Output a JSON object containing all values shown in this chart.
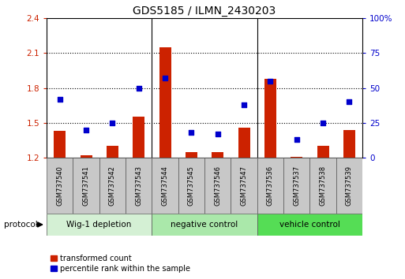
{
  "title": "GDS5185 / ILMN_2430203",
  "categories": [
    "GSM737540",
    "GSM737541",
    "GSM737542",
    "GSM737543",
    "GSM737544",
    "GSM737545",
    "GSM737546",
    "GSM737547",
    "GSM737536",
    "GSM737537",
    "GSM737538",
    "GSM737539"
  ],
  "bar_values": [
    1.43,
    1.22,
    1.3,
    1.55,
    2.15,
    1.25,
    1.25,
    1.46,
    1.88,
    1.21,
    1.3,
    1.44
  ],
  "scatter_values": [
    42,
    20,
    25,
    50,
    57,
    18,
    17,
    38,
    55,
    13,
    25,
    40
  ],
  "bar_color": "#cc2200",
  "scatter_color": "#0000cc",
  "ylim_left": [
    1.2,
    2.4
  ],
  "ylim_right": [
    0,
    100
  ],
  "yticks_left": [
    1.2,
    1.5,
    1.8,
    2.1,
    2.4
  ],
  "yticks_right": [
    0,
    25,
    50,
    75,
    100
  ],
  "ytick_labels_left": [
    "1.2",
    "1.5",
    "1.8",
    "2.1",
    "2.4"
  ],
  "ytick_labels_right": [
    "0",
    "25",
    "50",
    "75",
    "100%"
  ],
  "group_labels": [
    "Wig-1 depletion",
    "negative control",
    "vehicle control"
  ],
  "group_ranges": [
    [
      0,
      3
    ],
    [
      4,
      7
    ],
    [
      8,
      11
    ]
  ],
  "group_colors_light": [
    "#d4f0d4",
    "#aae8aa",
    "#55dd55"
  ],
  "protocol_label": "protocol",
  "legend_bar_label": "transformed count",
  "legend_scatter_label": "percentile rank within the sample",
  "bar_width": 0.45,
  "xlabel_bg": "#c8c8c8",
  "sep_line_color": "#888888"
}
